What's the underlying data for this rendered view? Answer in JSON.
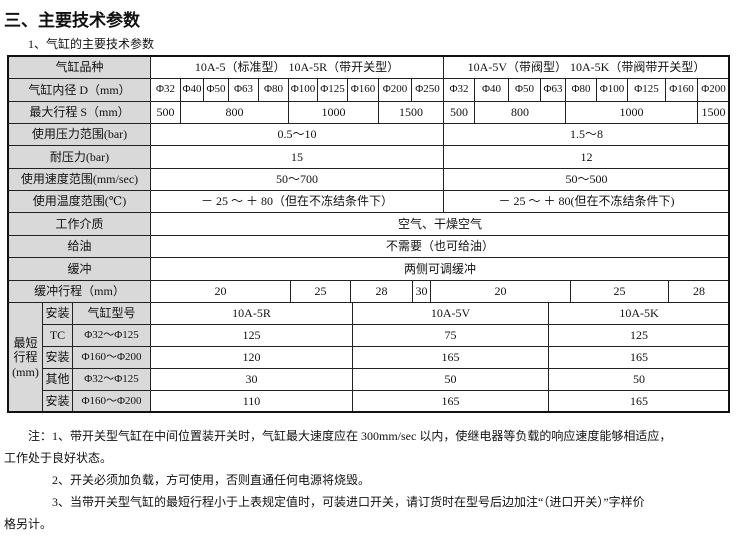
{
  "title": "三、主要技术参数",
  "subtitle": "1、气缸的主要技术参数",
  "table": {
    "labels": {
      "variety": "气缸品种",
      "bore": "气缸内径 D（mm）",
      "max_stroke": "最大行程 S（mm）",
      "pressure": "使用压力范围(bar)",
      "proof": "耐压力(bar)",
      "speed": "使用速度范围(mm/sec)",
      "temp": "使用温度范围(℃)",
      "medium": "工作介质",
      "oil": "给油",
      "cushion": "缓冲",
      "cushion_stroke": "缓冲行程（mm）",
      "min_stroke": "最短\n行程\n(mm)",
      "mount1": "安装",
      "tc": "TC",
      "mount2": "安装",
      "other": "其他",
      "mount3": "安装",
      "model": "气缸型号"
    },
    "left": {
      "variety": "10A-5（标准型）  10A-5R（带开关型）",
      "bores": [
        "Φ32",
        "Φ40",
        "Φ50",
        "Φ63",
        "Φ80",
        "Φ100",
        "Φ125",
        "Φ160",
        "Φ200",
        "Φ250"
      ],
      "strokes": [
        "500",
        "800",
        "1000",
        "1500"
      ],
      "pressure": "0.5～10",
      "proof": "15",
      "speed": "50～700",
      "temp": "－ 25 ～ ＋ 80（但在不冻结条件下）",
      "cushion_strokes": [
        "20",
        "25",
        "28"
      ]
    },
    "right": {
      "variety": "10A-5V（带阀型） 10A-5K（带阀带开关型）",
      "bores": [
        "Φ32",
        "Φ40",
        "Φ50",
        "Φ63",
        "Φ80",
        "Φ100",
        "Φ125",
        "Φ160",
        "Φ200"
      ],
      "strokes": [
        "500",
        "800",
        "1000",
        "1500"
      ],
      "pressure": "1.5～8",
      "proof": "12",
      "speed": "50～500",
      "temp": "－ 25 ～ ＋ 80(但在不冻结条件下)",
      "cushion_strokes": [
        "30",
        "20",
        "25",
        "28"
      ]
    },
    "medium": "空气、干燥空气",
    "oil": "不需要（也可给油）",
    "cushion": "两侧可调缓冲",
    "min_stroke": {
      "models": [
        "10A-5R",
        "10A-5V",
        "10A-5K"
      ],
      "rows": [
        {
          "range": "Φ32～Φ125",
          "values": [
            "125",
            "75",
            "125"
          ]
        },
        {
          "range": "Φ160～Φ200",
          "values": [
            "120",
            "165",
            "165"
          ]
        },
        {
          "range": "Φ32～Φ125",
          "values": [
            "30",
            "50",
            "50"
          ]
        },
        {
          "range": "Φ160～Φ200",
          "values": [
            "110",
            "165",
            "165"
          ]
        }
      ]
    }
  },
  "notes": [
    "注：1、带开关型气缸在中间位置装开关时，气缸最大速度应在 300mm/sec 以内，使继电器等负载的响应速度能够相适应，",
    "工作处于良好状态。",
    "2、开关必须加负载，方可使用，否则直通任何电源将烧毁。",
    "3、当带开关型气缸的最短行程小于上表规定值时，可装进口开关，请订货时在型号后边加注“（进口开关）”字样价",
    "格另计。"
  ]
}
